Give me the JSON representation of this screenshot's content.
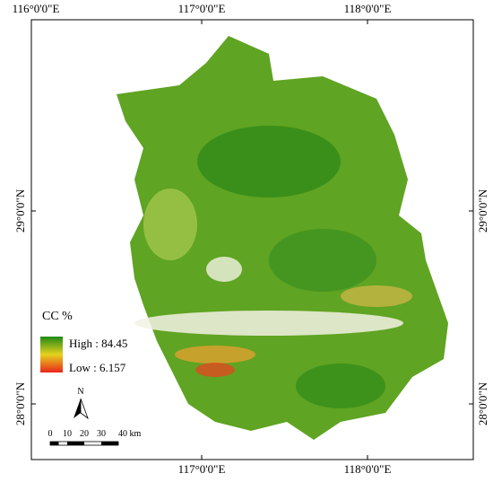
{
  "map": {
    "top_labels": [
      "116°0'0\"E",
      "117°0'0\"E",
      "118°0'0\"E"
    ],
    "bottom_labels": [
      "117°0'0\"E",
      "118°0'0\"E"
    ],
    "left_labels": [
      "29°0'0\"N",
      "28°0'0\"N"
    ],
    "right_labels": [
      "29°0'0\"N",
      "28°0'0\"N"
    ],
    "legend": {
      "title": "CC %",
      "high": "High : 84.45",
      "low": "Low : 6.157"
    },
    "north": "N",
    "scale_bar": [
      "0",
      "10",
      "20",
      "30",
      "40 km"
    ]
  }
}
